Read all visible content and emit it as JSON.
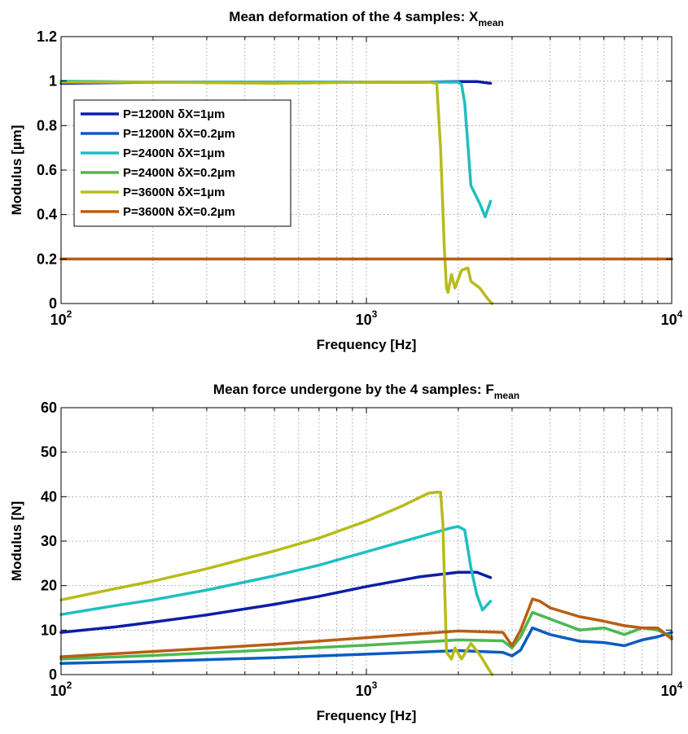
{
  "chart_data": [
    {
      "type": "line",
      "title": "Mean deformation of the 4 samples: X",
      "title_subscript": "mean",
      "xlabel": "Frequency [Hz]",
      "ylabel": "Modulus [µm]",
      "xscale": "log",
      "xlim": [
        100,
        10000
      ],
      "ylim": [
        0,
        1.2
      ],
      "yticks": [
        "0",
        "0.2",
        "0.4",
        "0.6",
        "0.8",
        "1",
        "1.2"
      ],
      "xticks": [
        {
          "base": "10",
          "exp": "2"
        },
        {
          "base": "10",
          "exp": "3"
        },
        {
          "base": "10",
          "exp": "4"
        }
      ],
      "grid": true,
      "legend": "upper-left",
      "series": [
        {
          "name": "P=1200N  δX=1µm",
          "color": "#0c1ea8",
          "x": [
            100,
            200,
            500,
            1000,
            1500,
            2000,
            2300,
            2550
          ],
          "y": [
            0.99,
            0.995,
            0.995,
            0.995,
            0.995,
            0.998,
            0.998,
            0.99
          ]
        },
        {
          "name": "P=1200N  δX=0.2µm",
          "color": "#0a5cc0",
          "x": [
            100,
            200,
            500,
            1000,
            2000,
            2550
          ],
          "y": [
            0.2,
            0.2,
            0.2,
            0.2,
            0.2,
            0.2
          ]
        },
        {
          "name": "P=2400N  δX=1µm",
          "color": "#1fbfbf",
          "x": [
            100,
            200,
            500,
            1000,
            1800,
            2000,
            2050,
            2100,
            2200,
            2350,
            2450,
            2550
          ],
          "y": [
            1.0,
            0.995,
            0.995,
            0.995,
            0.995,
            0.995,
            0.985,
            0.9,
            0.53,
            0.45,
            0.39,
            0.46
          ]
        },
        {
          "name": "P=2400N  δX=0.2µm",
          "color": "#4db851",
          "x": [
            100,
            200,
            500,
            1000,
            2000,
            2550
          ],
          "y": [
            0.2,
            0.2,
            0.2,
            0.2,
            0.2,
            0.2
          ]
        },
        {
          "name": "P=3600N  δX=1µm",
          "color": "#b8bb1a",
          "x": [
            100,
            200,
            500,
            1000,
            1600,
            1700,
            1750,
            1800,
            1830,
            1850,
            1900,
            1950,
            2050,
            2150,
            2200,
            2350,
            2500,
            2580
          ],
          "y": [
            0.995,
            0.995,
            0.99,
            0.995,
            0.995,
            0.99,
            0.7,
            0.25,
            0.07,
            0.05,
            0.13,
            0.07,
            0.15,
            0.16,
            0.1,
            0.07,
            0.02,
            0.0
          ]
        },
        {
          "name": "P=3600N  δX=0.2µm",
          "color": "#b85e14",
          "x": [
            100,
            200,
            500,
            1000,
            2000,
            5000,
            10000
          ],
          "y": [
            0.2,
            0.2,
            0.2,
            0.2,
            0.2,
            0.2,
            0.2
          ]
        }
      ]
    },
    {
      "type": "line",
      "title": "Mean force undergone by the 4 samples: F",
      "title_subscript": "mean",
      "xlabel": "Frequency [Hz]",
      "ylabel": "Modulus [N]",
      "xscale": "log",
      "xlim": [
        100,
        10000
      ],
      "ylim": [
        0,
        60
      ],
      "yticks": [
        "0",
        "10",
        "20",
        "30",
        "40",
        "50",
        "60"
      ],
      "xticks": [
        {
          "base": "10",
          "exp": "2"
        },
        {
          "base": "10",
          "exp": "3"
        },
        {
          "base": "10",
          "exp": "4"
        }
      ],
      "grid": true,
      "legend": "none",
      "series": [
        {
          "name": "P=1200N  δX=1µm",
          "color": "#0c1ea8",
          "x": [
            100,
            150,
            200,
            300,
            500,
            700,
            1000,
            1500,
            2000,
            2300,
            2550
          ],
          "y": [
            9.5,
            10.7,
            11.8,
            13.4,
            15.8,
            17.6,
            19.8,
            22.0,
            23.0,
            23.0,
            21.8
          ]
        },
        {
          "name": "P=1200N  δX=0.2µm",
          "color": "#0a5cc0",
          "x": [
            100,
            200,
            500,
            1000,
            2000,
            2800,
            3000,
            3200,
            3500,
            4000,
            5000,
            6000,
            7000,
            8000,
            9000,
            10000
          ],
          "y": [
            2.5,
            3.0,
            3.8,
            4.6,
            5.4,
            5.0,
            4.2,
            5.5,
            10.5,
            9.0,
            7.5,
            7.2,
            6.5,
            7.8,
            8.5,
            9.5
          ]
        },
        {
          "name": "P=2400N  δX=1µm",
          "color": "#1fbfbf",
          "x": [
            100,
            150,
            200,
            300,
            500,
            700,
            1000,
            1500,
            1900,
            2000,
            2100,
            2200,
            2300,
            2400,
            2550
          ],
          "y": [
            13.5,
            15.5,
            16.8,
            19.0,
            22.2,
            24.6,
            27.6,
            31.0,
            33.0,
            33.3,
            32.5,
            24.0,
            18.0,
            14.5,
            16.5
          ]
        },
        {
          "name": "P=2400N  δX=0.2µm",
          "color": "#4db851",
          "x": [
            100,
            200,
            500,
            1000,
            2000,
            2800,
            3000,
            3200,
            3500,
            4000,
            5000,
            6000,
            7000,
            8000,
            9000,
            10000
          ],
          "y": [
            3.5,
            4.3,
            5.6,
            6.6,
            7.8,
            7.6,
            6.0,
            8.5,
            14.0,
            12.5,
            10.0,
            10.5,
            9.0,
            10.5,
            10.0,
            8.5
          ]
        },
        {
          "name": "P=3600N  δX=1µm",
          "color": "#b8bb1a",
          "x": [
            100,
            150,
            200,
            300,
            500,
            700,
            1000,
            1300,
            1600,
            1700,
            1750,
            1780,
            1830,
            1900,
            1950,
            2050,
            2200,
            2350,
            2500,
            2580
          ],
          "y": [
            16.8,
            19.3,
            21.0,
            23.8,
            27.8,
            30.7,
            34.5,
            37.8,
            40.8,
            41.0,
            41.0,
            34.0,
            5.0,
            3.5,
            6.0,
            3.5,
            7.0,
            4.5,
            1.5,
            0.0
          ]
        },
        {
          "name": "P=3600N  δX=0.2µm",
          "color": "#b85e14",
          "x": [
            100,
            200,
            500,
            1000,
            2000,
            2800,
            3000,
            3200,
            3500,
            3700,
            4000,
            5000,
            6000,
            7000,
            8000,
            9000,
            10000
          ],
          "y": [
            4.0,
            5.2,
            6.8,
            8.3,
            9.8,
            9.5,
            6.5,
            10.0,
            17.0,
            16.5,
            15.0,
            13.0,
            12.0,
            11.0,
            10.5,
            10.5,
            8.0
          ]
        }
      ]
    }
  ]
}
